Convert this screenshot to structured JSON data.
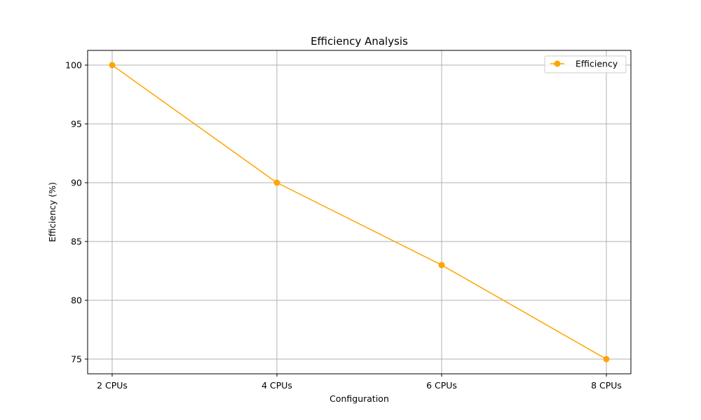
{
  "chart_data": {
    "type": "line",
    "title": "Efficiency Analysis",
    "xlabel": "Configuration",
    "ylabel": "Efficiency (%)",
    "categories": [
      "2 CPUs",
      "4 CPUs",
      "6 CPUs",
      "8 CPUs"
    ],
    "series": [
      {
        "name": "Efficiency",
        "values": [
          100,
          90,
          83,
          75
        ],
        "color": "#FFA500",
        "marker": "circle"
      }
    ],
    "yticks": [
      75,
      80,
      85,
      90,
      95,
      100
    ],
    "ylim": [
      73.75,
      101.25
    ],
    "grid": true,
    "legend_position": "top-right"
  }
}
